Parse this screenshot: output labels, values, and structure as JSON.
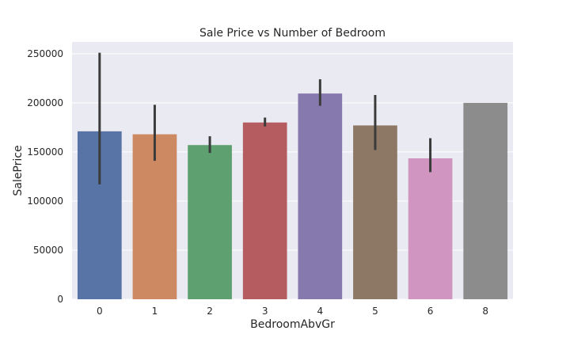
{
  "chart_data": {
    "type": "bar",
    "title": "Sale Price vs Number of Bedroom",
    "xlabel": "BedroomAbvGr",
    "ylabel": "SalePrice",
    "categories": [
      "0",
      "1",
      "2",
      "3",
      "4",
      "5",
      "6",
      "8"
    ],
    "values": [
      171000,
      168000,
      157000,
      180000,
      209500,
      177000,
      143500,
      200000
    ],
    "error_low": [
      117000,
      141000,
      149000,
      176000,
      197000,
      152000,
      129500,
      null
    ],
    "error_high": [
      251000,
      198000,
      166000,
      185000,
      224000,
      208000,
      164000,
      null
    ],
    "ylim": [
      0,
      262000
    ],
    "yticks": [
      0,
      50000,
      100000,
      150000,
      200000,
      250000
    ],
    "ytick_labels": [
      "0",
      "50000",
      "100000",
      "150000",
      "200000",
      "250000"
    ],
    "colors": [
      "#5874a7",
      "#cd8962",
      "#5ea06f",
      "#b45c5f",
      "#8679ae",
      "#8d7865",
      "#d095c0",
      "#8c8c8c"
    ],
    "background": "#eaeaf2",
    "grid": true,
    "error_bar_color": "#3b3b3b"
  }
}
